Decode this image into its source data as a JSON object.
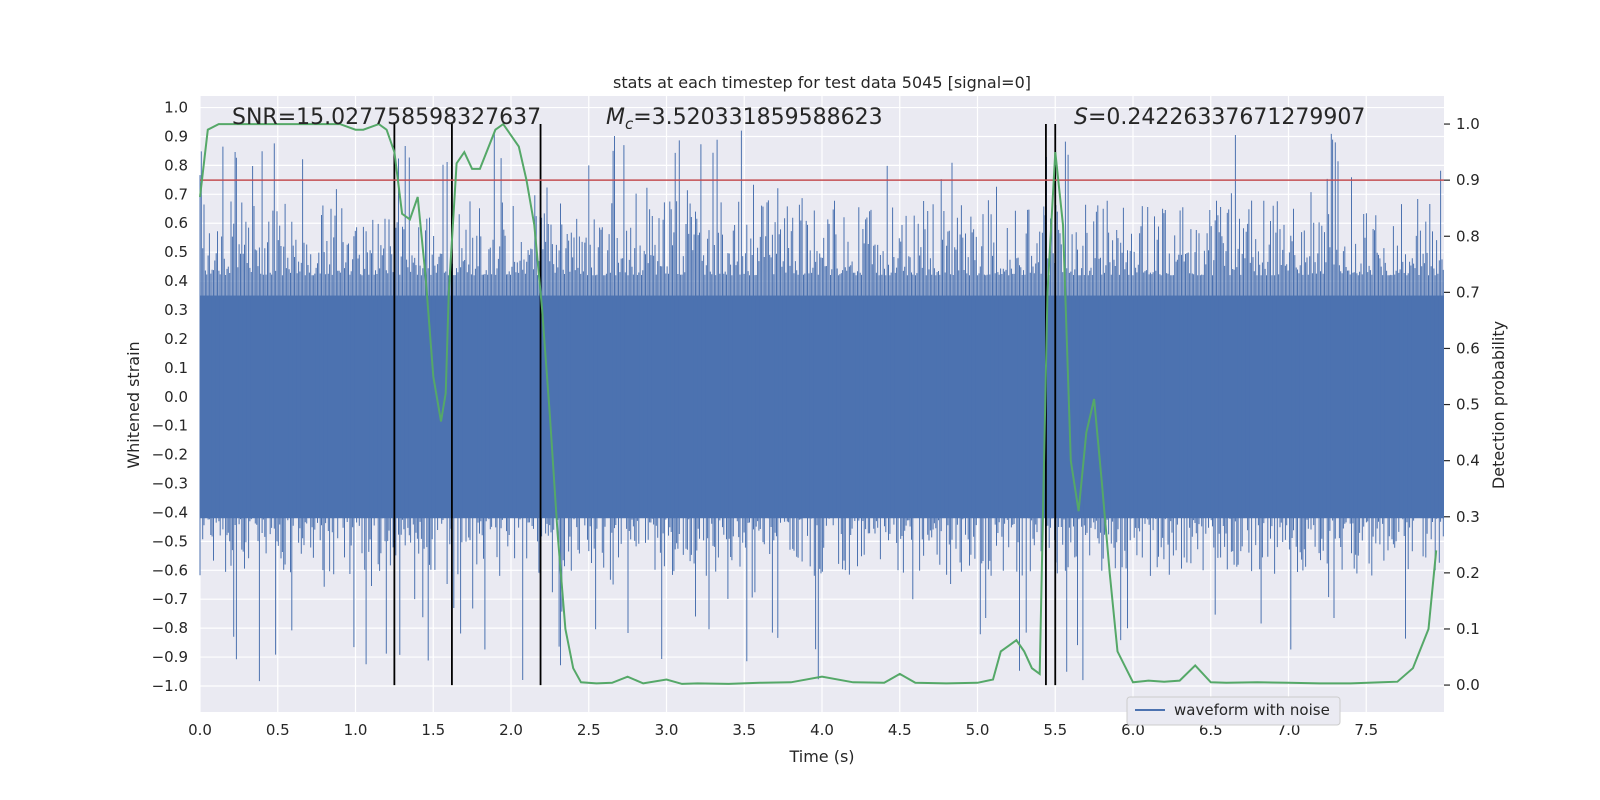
{
  "chart_data": {
    "type": "line",
    "title": "stats at each timestep for test data 5045 [signal=0]",
    "xlabel": "Time (s)",
    "ylabel": "Whitened strain",
    "y2label": "Detection probability",
    "xlim": [
      0.0,
      8.0
    ],
    "ylim": [
      -1.09,
      1.04
    ],
    "y2lim": [
      -0.048,
      1.05
    ],
    "xticks": [
      "0.0",
      "0.5",
      "1.0",
      "1.5",
      "2.0",
      "2.5",
      "3.0",
      "3.5",
      "4.0",
      "4.5",
      "5.0",
      "5.5",
      "6.0",
      "6.5",
      "7.0",
      "7.5"
    ],
    "yticks": [
      "1.0",
      "0.9",
      "0.8",
      "0.7",
      "0.6",
      "0.5",
      "0.4",
      "0.3",
      "0.2",
      "0.1",
      "0.0",
      "-0.1",
      "-0.2",
      "-0.3",
      "-0.4",
      "-0.5",
      "-0.6",
      "-0.7",
      "-0.8",
      "-0.9",
      "-1.0"
    ],
    "y2ticks": [
      "1.0",
      "0.9",
      "0.8",
      "0.7",
      "0.6",
      "0.5",
      "0.4",
      "0.3",
      "0.2",
      "0.1",
      "0.0"
    ],
    "annotations": {
      "snr": "SNR=15.027758598327637",
      "mc": "=3.520331859588623",
      "s": "=0.24226337671279907"
    },
    "threshold": {
      "value": 0.9,
      "axis": "y2",
      "color": "#c44e52"
    },
    "event_markers_x": [
      1.25,
      1.62,
      2.19,
      5.44,
      5.5
    ],
    "legend": [
      "waveform with noise"
    ],
    "legend_position": "lower-right",
    "series": [
      {
        "name": "waveform with noise",
        "axis": "y",
        "color": "#4c72b0",
        "kind": "dense noise band",
        "band_upper": 0.35,
        "band_lower": -0.42,
        "peak_max": 0.93,
        "trough_min": -0.99
      },
      {
        "name": "detection probability",
        "axis": "y2",
        "color": "#55a868",
        "x": [
          0.0,
          0.05,
          0.12,
          0.2,
          0.3,
          0.5,
          0.7,
          0.9,
          1.0,
          1.05,
          1.15,
          1.2,
          1.25,
          1.3,
          1.35,
          1.4,
          1.45,
          1.5,
          1.55,
          1.58,
          1.6,
          1.65,
          1.7,
          1.75,
          1.8,
          1.9,
          1.95,
          2.0,
          2.05,
          2.1,
          2.15,
          2.2,
          2.25,
          2.3,
          2.35,
          2.4,
          2.45,
          2.55,
          2.65,
          2.75,
          2.85,
          3.0,
          3.1,
          3.2,
          3.4,
          3.6,
          3.8,
          4.0,
          4.2,
          4.4,
          4.5,
          4.6,
          4.8,
          5.0,
          5.1,
          5.15,
          5.2,
          5.25,
          5.3,
          5.35,
          5.4,
          5.45,
          5.5,
          5.55,
          5.6,
          5.65,
          5.7,
          5.75,
          5.8,
          5.85,
          5.9,
          6.0,
          6.1,
          6.2,
          6.3,
          6.4,
          6.5,
          6.6,
          6.8,
          7.0,
          7.2,
          7.4,
          7.6,
          7.7,
          7.8,
          7.9,
          7.95
        ],
        "values": [
          0.87,
          0.99,
          1.0,
          1.0,
          1.0,
          1.0,
          1.0,
          1.0,
          0.99,
          0.99,
          1.0,
          0.99,
          0.95,
          0.84,
          0.83,
          0.87,
          0.73,
          0.55,
          0.47,
          0.52,
          0.7,
          0.93,
          0.95,
          0.92,
          0.92,
          0.99,
          1.0,
          0.98,
          0.96,
          0.9,
          0.82,
          0.67,
          0.48,
          0.27,
          0.1,
          0.03,
          0.005,
          0.003,
          0.004,
          0.015,
          0.003,
          0.01,
          0.002,
          0.003,
          0.002,
          0.004,
          0.005,
          0.015,
          0.005,
          0.004,
          0.02,
          0.004,
          0.003,
          0.004,
          0.01,
          0.06,
          0.07,
          0.08,
          0.06,
          0.03,
          0.02,
          0.7,
          0.95,
          0.82,
          0.4,
          0.31,
          0.45,
          0.51,
          0.36,
          0.2,
          0.06,
          0.005,
          0.008,
          0.006,
          0.008,
          0.035,
          0.005,
          0.004,
          0.005,
          0.004,
          0.003,
          0.003,
          0.005,
          0.006,
          0.03,
          0.1,
          0.24
        ]
      }
    ]
  }
}
